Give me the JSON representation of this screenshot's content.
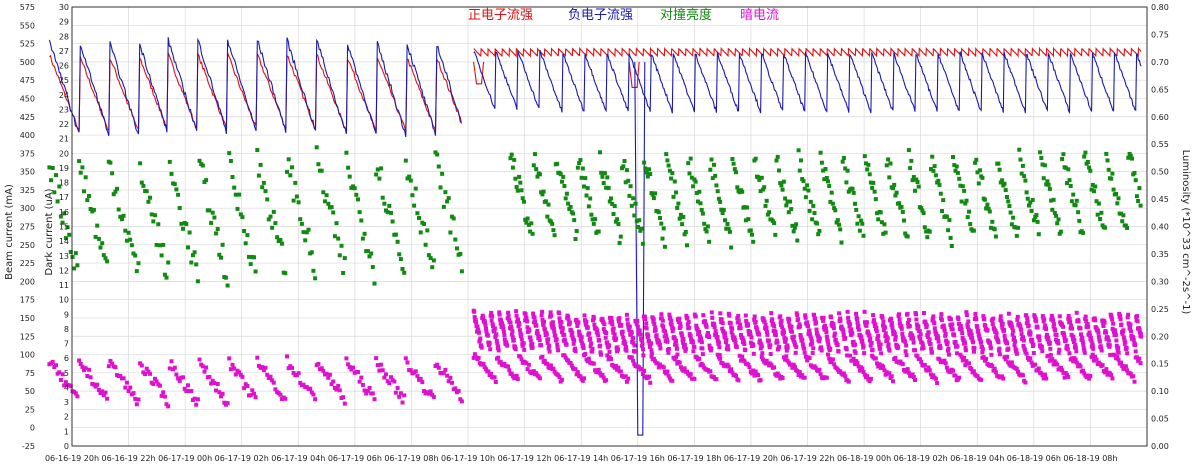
{
  "chart_data": {
    "type": "line",
    "legend": {
      "placement": "top",
      "items": [
        {
          "label": "正电子流强",
          "color": "#e01010"
        },
        {
          "label": "负电子流强",
          "color": "#1a1ab0"
        },
        {
          "label": "对撞亮度",
          "color": "#118a11"
        },
        {
          "label": "暗电流",
          "color": "#e010d0"
        }
      ]
    },
    "axes": {
      "beam": {
        "label": "Beam current (mA)",
        "min": -25,
        "max": 575,
        "step": 25
      },
      "dark": {
        "label": "Dark current (uA)",
        "min": 0,
        "max": 30,
        "step": 1
      },
      "lum": {
        "label": "Luminosity (*10^33 cm^-2s^-1)",
        "min": 0.0,
        "max": 0.8,
        "step": 0.05
      },
      "x": {
        "min": 0,
        "max": 38,
        "tick_labels": [
          "06-16-19 20h",
          "06-16-19 22h",
          "06-17-19 00h",
          "06-17-19 02h",
          "06-17-19 04h",
          "06-17-19 06h",
          "06-17-19 08h",
          "06-17-19 10h",
          "06-17-19 12h",
          "06-17-19 14h",
          "06-17-19 16h",
          "06-17-19 18h",
          "06-17-19 20h",
          "06-17-19 22h",
          "06-18-19 00h",
          "06-18-19 02h",
          "06-18-19 04h",
          "06-18-19 06h",
          "06-18-19 08h"
        ],
        "tick_hours": [
          0,
          2,
          4,
          6,
          8,
          10,
          12,
          14,
          16,
          18,
          20,
          22,
          24,
          26,
          28,
          30,
          32,
          34,
          36
        ]
      }
    },
    "grid": true,
    "series": [
      {
        "name": "正电子流强",
        "axis": "beam",
        "kind": "sawtooth",
        "color": "#e01010",
        "phases": [
          {
            "from": -0.8,
            "to": 13.8,
            "period": 1.05,
            "top": 510,
            "bottom": 405
          },
          {
            "from": 14.2,
            "to": 37.8,
            "period": 0.25,
            "top": 518,
            "bottom": 508
          }
        ],
        "dips": [
          {
            "x": 19.8,
            "value": 465
          },
          {
            "x": 14.3,
            "value": 470
          }
        ]
      },
      {
        "name": "负电子流强",
        "axis": "beam",
        "kind": "sawtooth",
        "color": "#1a1ab0",
        "phases": [
          {
            "from": -0.8,
            "to": 13.8,
            "period": 1.05,
            "top": 530,
            "bottom": 400
          },
          {
            "from": 14.2,
            "to": 37.8,
            "period": 0.78,
            "top": 515,
            "bottom": 432
          }
        ],
        "dips": [
          {
            "x": 20.0,
            "value": -10
          }
        ]
      },
      {
        "name": "对撞亮度",
        "axis": "lum",
        "kind": "sawtooth-scatter",
        "color": "#118a11",
        "phases": [
          {
            "from": -0.8,
            "to": 13.8,
            "period": 1.05,
            "top": 0.52,
            "bottom": 0.31
          },
          {
            "from": 15.5,
            "to": 37.8,
            "period": 0.78,
            "top": 0.53,
            "bottom": 0.38
          }
        ]
      },
      {
        "name": "暗电流",
        "axis": "dark",
        "kind": "sawtooth-scatter",
        "color": "#e010d0",
        "phases": [
          {
            "from": -0.8,
            "to": 13.8,
            "period": 1.05,
            "top": 5.8,
            "bottom": 3.0
          },
          {
            "from": 14.2,
            "to": 37.8,
            "period": 0.78,
            "top": 6.2,
            "bottom": 4.5
          },
          {
            "from": 14.2,
            "to": 37.8,
            "period": 0.3,
            "top": 9.0,
            "bottom": 6.5
          }
        ]
      }
    ]
  }
}
